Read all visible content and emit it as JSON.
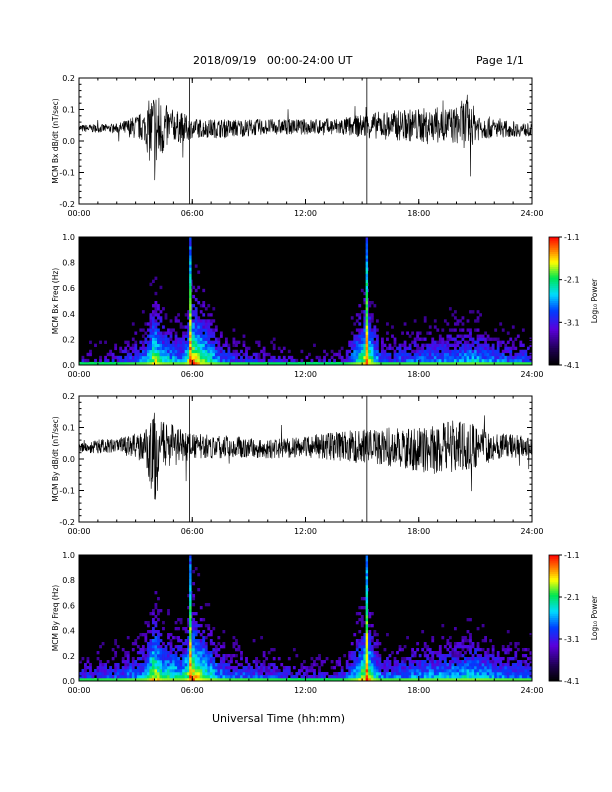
{
  "header": {
    "date_range": "2018/09/19   00:00-24:00 UT",
    "page": "Page 1/1"
  },
  "footer": {
    "xlabel": "Universal Time (hh:mm)"
  },
  "colorbar": {
    "label": "Log₁₀ Power",
    "ticks": [
      "-1.1",
      "-2.1",
      "-3.1",
      "-4.1"
    ],
    "range": [
      -4.1,
      -1.1
    ]
  },
  "chart_data": [
    {
      "type": "line",
      "ylabel": "MCM Bx dB/dt (nT/sec)",
      "xlim": [
        0,
        24
      ],
      "ylim": [
        -0.2,
        0.2
      ],
      "x_ticks": [
        "00:00",
        "06:00",
        "12:00",
        "18:00",
        "24:00"
      ],
      "y_ticks": [
        "0.2",
        "0.1",
        "0.0",
        "-0.1",
        "-0.2"
      ],
      "grid": false,
      "vertical_markers_hours": [
        5.85,
        15.25
      ],
      "series": [
        {
          "x_hours": [
            0,
            2,
            3.5,
            4.0,
            4.5,
            5.0,
            5.5,
            6.0,
            7.0,
            8.0,
            10,
            12,
            14,
            16,
            18,
            20,
            20.6,
            21,
            22,
            24
          ],
          "center": [
            0.04,
            0.04,
            0.045,
            0.02,
            0.04,
            0.05,
            0.04,
            0.04,
            0.04,
            0.04,
            0.045,
            0.045,
            0.045,
            0.05,
            0.05,
            0.05,
            0.06,
            0.05,
            0.04,
            0.035
          ],
          "amplitude": [
            0.012,
            0.015,
            0.05,
            0.16,
            0.08,
            0.05,
            0.05,
            0.03,
            0.03,
            0.03,
            0.025,
            0.025,
            0.03,
            0.045,
            0.055,
            0.06,
            0.09,
            0.05,
            0.03,
            0.02
          ]
        }
      ]
    },
    {
      "type": "heatmap",
      "ylabel": "MCM Bx Freq (Hz)",
      "xlim": [
        0,
        24
      ],
      "ylim": [
        0,
        1.0
      ],
      "x_ticks": [
        "00:00",
        "06:00",
        "12:00",
        "18:00",
        "24:00"
      ],
      "y_ticks": [
        "1.0",
        "0.8",
        "0.6",
        "0.4",
        "0.2",
        "0.0"
      ],
      "zlabel": "Log10 Power",
      "zlim": [
        -4.1,
        -1.1
      ],
      "activity": {
        "x_hours": [
          0,
          2,
          3.5,
          4.0,
          4.5,
          5.5,
          6.0,
          7.5,
          8.0,
          10,
          12,
          14,
          15.25,
          16,
          18,
          20,
          21,
          22,
          24
        ],
        "level": [
          0.35,
          0.4,
          0.6,
          0.9,
          0.7,
          0.6,
          1.0,
          0.55,
          0.5,
          0.4,
          0.3,
          0.35,
          0.95,
          0.5,
          0.55,
          0.6,
          0.65,
          0.55,
          0.5
        ]
      }
    },
    {
      "type": "line",
      "ylabel": "MCM By dB/dt (nT/sec)",
      "xlim": [
        0,
        24
      ],
      "ylim": [
        -0.2,
        0.2
      ],
      "x_ticks": [
        "00:00",
        "06:00",
        "12:00",
        "18:00",
        "24:00"
      ],
      "y_ticks": [
        "0.2",
        "0.1",
        "0.0",
        "-0.1",
        "-0.2"
      ],
      "grid": false,
      "vertical_markers_hours": [
        5.85,
        15.25
      ],
      "series": [
        {
          "x_hours": [
            0,
            2,
            3.5,
            4.0,
            4.5,
            5.0,
            5.5,
            6.0,
            7.0,
            8.0,
            10,
            12,
            14,
            16,
            18,
            19,
            20,
            21,
            22,
            24
          ],
          "center": [
            0.04,
            0.04,
            0.04,
            0.0,
            0.04,
            0.05,
            0.04,
            0.04,
            0.04,
            0.04,
            0.03,
            0.04,
            0.04,
            0.04,
            0.03,
            0.03,
            0.04,
            0.04,
            0.04,
            0.04
          ],
          "amplitude": [
            0.02,
            0.025,
            0.05,
            0.15,
            0.08,
            0.06,
            0.05,
            0.04,
            0.04,
            0.035,
            0.03,
            0.035,
            0.05,
            0.06,
            0.07,
            0.08,
            0.09,
            0.07,
            0.045,
            0.03
          ]
        }
      ]
    },
    {
      "type": "heatmap",
      "ylabel": "MCM By Freq (Hz)",
      "xlim": [
        0,
        24
      ],
      "ylim": [
        0,
        1.0
      ],
      "x_ticks": [
        "00:00",
        "06:00",
        "12:00",
        "18:00",
        "24:00"
      ],
      "y_ticks": [
        "1.0",
        "0.8",
        "0.6",
        "0.4",
        "0.2",
        "0.0"
      ],
      "zlabel": "Log10 Power",
      "zlim": [
        -4.1,
        -1.1
      ],
      "activity": {
        "x_hours": [
          0,
          2,
          3.5,
          4.0,
          4.5,
          5.5,
          6.0,
          7.5,
          8.0,
          10,
          12,
          14,
          15.25,
          16,
          18,
          20,
          21,
          22,
          24
        ],
        "level": [
          0.45,
          0.5,
          0.65,
          0.95,
          0.75,
          0.7,
          1.0,
          0.6,
          0.55,
          0.5,
          0.4,
          0.45,
          0.95,
          0.55,
          0.6,
          0.65,
          0.7,
          0.6,
          0.55
        ]
      }
    }
  ]
}
